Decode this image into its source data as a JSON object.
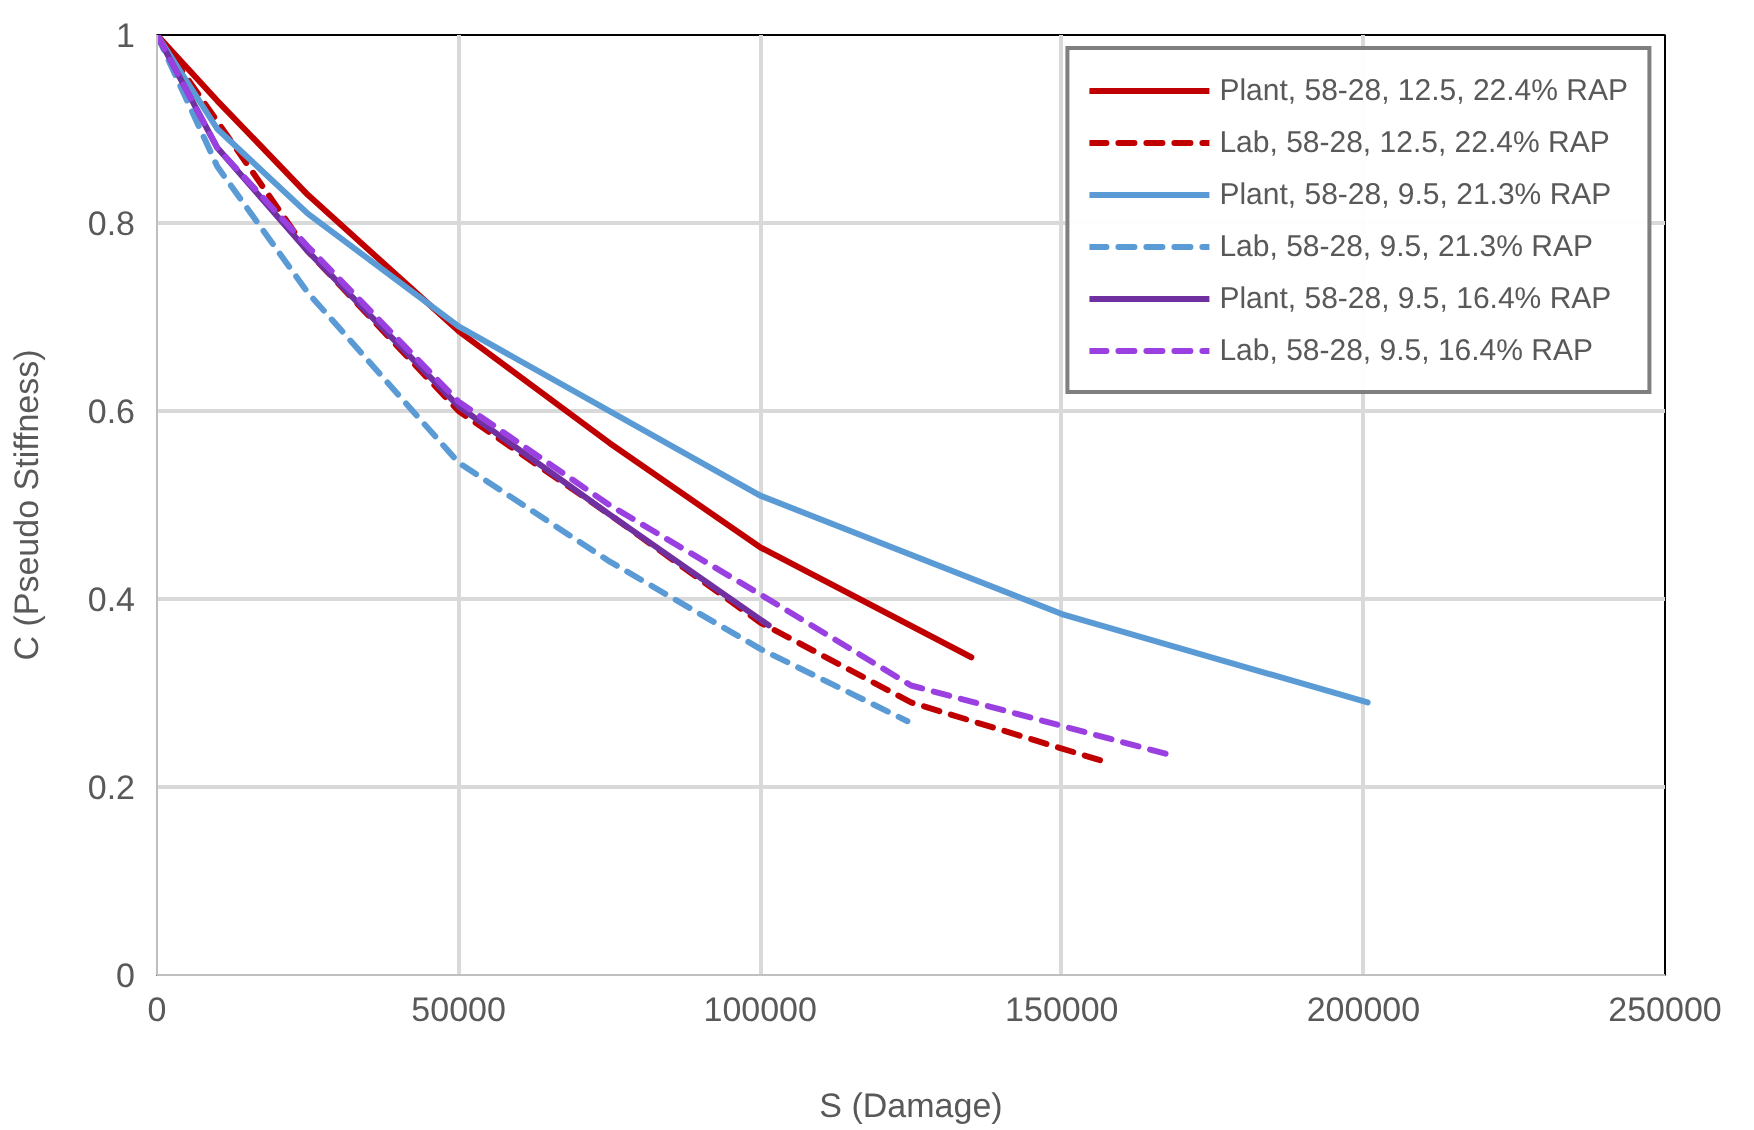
{
  "chart_data": {
    "type": "line",
    "xlabel": "S (Damage)",
    "ylabel": "C (Pseudo Stiffness)",
    "xlim": [
      0,
      250000
    ],
    "xticks": [
      0,
      50000,
      100000,
      150000,
      200000,
      250000
    ],
    "ylim": [
      0,
      1
    ],
    "yticks": [
      0,
      0.2,
      0.4,
      0.6,
      0.8,
      1
    ],
    "grid": true,
    "legend": "top right",
    "series": [
      {
        "name": "Plant, 58-28, 12.5, 22.4% RAP",
        "color": "#c00000",
        "line_style": "solid",
        "x": [
          0,
          10000,
          25000,
          50000,
          75000,
          100000,
          135000
        ],
        "values": [
          1,
          0.93,
          0.83,
          0.685,
          0.566,
          0.455,
          0.338
        ]
      },
      {
        "name": "Lab, 58-28, 12.5, 22.4% RAP",
        "color": "#c00000",
        "line_style": "dashed",
        "x": [
          0,
          25000,
          50000,
          75000,
          100000,
          125000,
          156600
        ],
        "values": [
          1,
          0.77,
          0.6,
          0.49,
          0.375,
          0.29,
          0.228
        ]
      },
      {
        "name": "Plant, 58-28, 9.5, 21.3% RAP",
        "color": "#5b9bd5",
        "line_style": "solid",
        "x": [
          0,
          10000,
          25000,
          50000,
          100000,
          150000,
          200700
        ],
        "values": [
          1,
          0.9,
          0.81,
          0.69,
          0.51,
          0.384,
          0.29
        ]
      },
      {
        "name": "Lab, 58-28, 9.5, 21.3% RAP",
        "color": "#5b9bd5",
        "line_style": "dashed",
        "x": [
          0,
          10000,
          25000,
          50000,
          75000,
          100000,
          124400
        ],
        "values": [
          1,
          0.86,
          0.726,
          0.545,
          0.44,
          0.347,
          0.27
        ]
      },
      {
        "name": "Plant, 58-28, 9.5, 16.4% RAP",
        "color": "#7030a0",
        "line_style": "solid",
        "x": [
          0,
          10000,
          25000,
          50000,
          75000,
          101400
        ],
        "values": [
          1,
          0.88,
          0.77,
          0.605,
          0.49,
          0.372
        ]
      },
      {
        "name": "Lab, 58-28, 9.5, 16.4% RAP",
        "color": "#9b40e0",
        "line_style": "dashed",
        "x": [
          0,
          10000,
          25000,
          50000,
          75000,
          100000,
          125000,
          168600
        ],
        "values": [
          1,
          0.88,
          0.775,
          0.61,
          0.5,
          0.405,
          0.308,
          0.233
        ]
      }
    ]
  }
}
